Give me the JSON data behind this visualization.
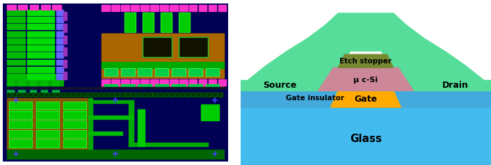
{
  "fig_width": 7.06,
  "fig_height": 2.37,
  "dpi": 100,
  "right_panel": {
    "glass_color": "#44bbee",
    "gate_insulator_color": "#44aadd",
    "gate_color": "#ffaa00",
    "mu_c_si_color": "#cc8899",
    "source_drain_color": "#55dd99",
    "etch_stopper_color": "#778833",
    "text_color": "#000000",
    "glass_label": "Glass",
    "gate_label": "Gate",
    "gate_insulator_label": "Gate insulator",
    "source_label": "Source",
    "drain_label": "Drain",
    "mu_c_si_label": "μ c-Si",
    "etch_stopper_label": "Etch stopper"
  }
}
